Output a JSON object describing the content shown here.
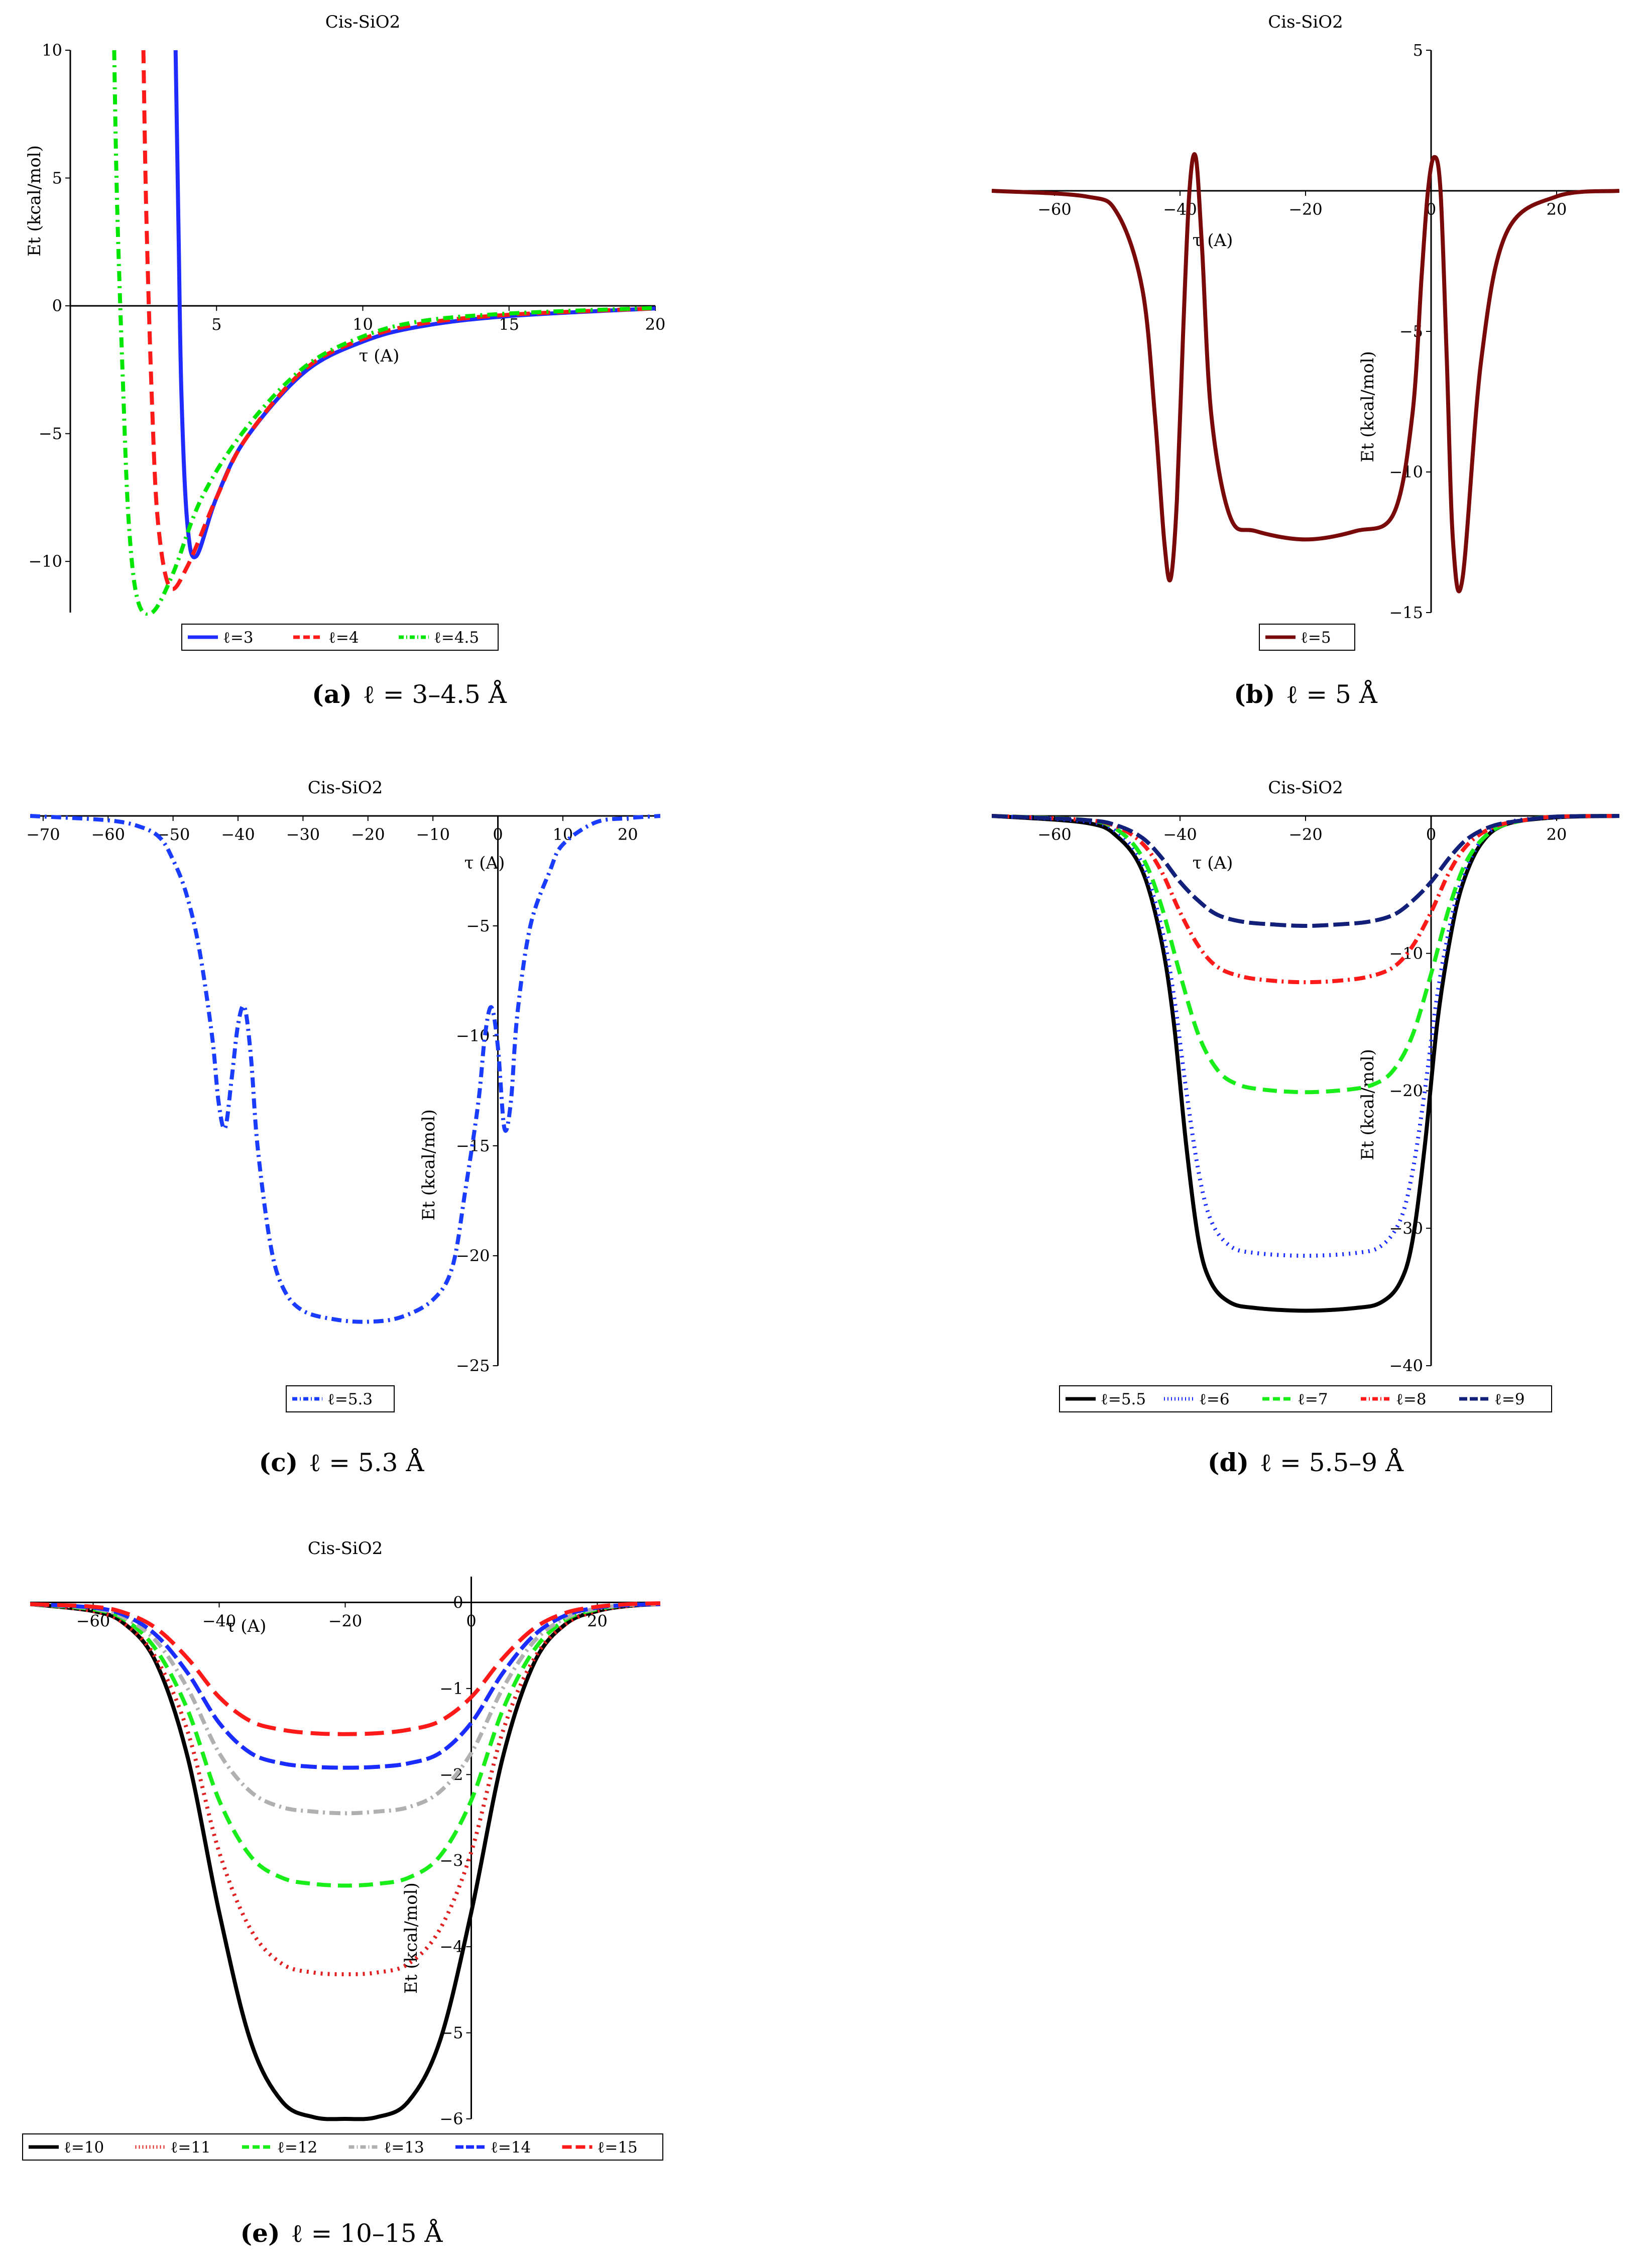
{
  "chart_data": [
    {
      "id": "a",
      "type": "line",
      "title": "Cis-SiO2",
      "xlabel": "τ (A)",
      "ylabel": "Et (kcal/mol)",
      "xlim": [
        0,
        20
      ],
      "ylim": [
        -12,
        10
      ],
      "xticks": [
        5,
        10,
        15,
        20
      ],
      "yticks": [
        -10,
        -5,
        0,
        5,
        10
      ],
      "caption_label": "(a)",
      "caption_text": "ℓ = 3–4.5 Å",
      "series": [
        {
          "name": "ℓ=3",
          "color": "#1f2bff",
          "dash": "",
          "x": [
            3.6,
            3.7,
            3.8,
            4.0,
            4.3,
            5.0,
            6.0,
            8.0,
            10.0,
            12.0,
            15.0,
            20.0
          ],
          "y": [
            10,
            3.0,
            -3.5,
            -8.5,
            -9.8,
            -7.5,
            -5.2,
            -2.6,
            -1.4,
            -0.8,
            -0.4,
            -0.1
          ]
        },
        {
          "name": "ℓ=4",
          "color": "#ff1a1a",
          "dash": "26,14",
          "x": [
            2.5,
            2.6,
            2.8,
            3.0,
            3.4,
            4.0,
            5.0,
            6.0,
            8.0,
            10.0,
            12.0,
            15.0,
            20.0
          ],
          "y": [
            10,
            3.5,
            -4.0,
            -8.5,
            -11.0,
            -10.2,
            -7.5,
            -5.2,
            -2.5,
            -1.3,
            -0.7,
            -0.35,
            -0.1
          ]
        },
        {
          "name": "ℓ=4.5",
          "color": "#00e600",
          "dash": "20,10,4,10",
          "x": [
            1.5,
            1.6,
            1.8,
            2.0,
            2.3,
            2.8,
            3.5,
            4.5,
            6.0,
            8.0,
            10.0,
            12.0,
            15.0,
            20.0
          ],
          "y": [
            10,
            4.0,
            -3.0,
            -8.5,
            -11.5,
            -12.0,
            -10.5,
            -7.5,
            -4.8,
            -2.4,
            -1.2,
            -0.6,
            -0.3,
            -0.08
          ]
        }
      ]
    },
    {
      "id": "b",
      "type": "line",
      "title": "Cis-SiO2",
      "xlabel": "τ (A)",
      "ylabel": "Et (kcal/mol)",
      "xlim": [
        -70,
        30
      ],
      "ylim": [
        -15,
        5
      ],
      "xticks": [
        -60,
        -40,
        -20,
        0,
        20
      ],
      "yticks": [
        -15,
        -10,
        -5,
        5
      ],
      "caption_label": "(b)",
      "caption_text": "ℓ = 5 Å",
      "series": [
        {
          "name": "ℓ=5",
          "color": "#7a0a0a",
          "dash": "",
          "x": [
            -70,
            -55,
            -50,
            -46,
            -44,
            -42.5,
            -41.5,
            -40.5,
            -39.5,
            -38.5,
            -37.5,
            -36.5,
            -35,
            -32,
            -28,
            -20,
            -12,
            -6,
            -3,
            -1.5,
            -0.5,
            0.5,
            1.5,
            2.5,
            3.5,
            5,
            8,
            12,
            20,
            30
          ],
          "y": [
            0,
            -0.2,
            -0.8,
            -3.5,
            -8,
            -12.5,
            -13.8,
            -11,
            -5,
            0,
            1.2,
            -2,
            -8,
            -11.6,
            -12.1,
            -12.4,
            -12.1,
            -11.5,
            -8,
            -3,
            0,
            1.2,
            0,
            -6,
            -12.5,
            -13.8,
            -6,
            -1.5,
            -0.2,
            0
          ]
        }
      ]
    },
    {
      "id": "c",
      "type": "line",
      "title": "Cis-SiO2",
      "xlabel": "τ (A)",
      "ylabel": "Et (kcal/mol)",
      "xlim": [
        -72,
        25
      ],
      "ylim": [
        -25,
        0
      ],
      "xticks": [
        -70,
        -60,
        -50,
        -40,
        -30,
        -20,
        -10,
        0,
        10,
        20
      ],
      "yticks": [
        -25,
        -20,
        -15,
        -10,
        -5
      ],
      "caption_label": "(c)",
      "caption_text": "ℓ = 5.3 Å",
      "series": [
        {
          "name": "ℓ=5.3",
          "color": "#1a3cff",
          "dash": "20,9,4,9",
          "x": [
            -72,
            -60,
            -55,
            -52,
            -50,
            -48,
            -46,
            -44,
            -43,
            -42,
            -41,
            -40,
            -39,
            -38,
            -37,
            -35,
            -33,
            -30,
            -25,
            -20,
            -15,
            -10,
            -7,
            -5,
            -3,
            -2,
            -1,
            0,
            1,
            2,
            3,
            5,
            8,
            10,
            15,
            20,
            25
          ],
          "y": [
            0,
            -0.2,
            -0.5,
            -1.0,
            -2.0,
            -3.5,
            -6.0,
            -10.0,
            -13.0,
            -14.2,
            -12.0,
            -9.5,
            -8.7,
            -11.0,
            -15.0,
            -19.5,
            -21.5,
            -22.5,
            -22.9,
            -23.0,
            -22.8,
            -22.0,
            -20.5,
            -17.0,
            -13.0,
            -10.0,
            -8.7,
            -10.5,
            -14.2,
            -13.0,
            -9.0,
            -5.0,
            -2.5,
            -1.3,
            -0.3,
            -0.1,
            0
          ]
        }
      ]
    },
    {
      "id": "d",
      "type": "line",
      "title": "Cis-SiO2",
      "xlabel": "τ (A)",
      "ylabel": "Et (kcal/mol)",
      "xlim": [
        -70,
        30
      ],
      "ylim": [
        -40,
        0
      ],
      "xticks": [
        -60,
        -40,
        -20,
        0,
        20
      ],
      "yticks": [
        -40,
        -30,
        -20,
        -10
      ],
      "caption_label": "(d)",
      "caption_text": "ℓ = 5.5–9 Å",
      "series": [
        {
          "name": "ℓ=5.5",
          "color": "#000000",
          "dash": "",
          "x": [
            -70,
            -55,
            -50,
            -46,
            -43,
            -41,
            -39,
            -37,
            -35,
            -32,
            -28,
            -20,
            -12,
            -8,
            -5,
            -3,
            -1,
            1,
            3,
            5,
            8,
            12,
            20,
            30
          ],
          "y": [
            0,
            -0.5,
            -1.5,
            -4,
            -9,
            -15,
            -24,
            -31,
            -34,
            -35.4,
            -35.8,
            -36,
            -35.8,
            -35.4,
            -34,
            -31,
            -24,
            -15,
            -9,
            -5,
            -2,
            -0.6,
            -0.1,
            0
          ]
        },
        {
          "name": "ℓ=6",
          "color": "#1a2cff",
          "dash": "3,10",
          "x": [
            -70,
            -55,
            -50,
            -46,
            -43,
            -41,
            -39,
            -37,
            -35,
            -32,
            -28,
            -20,
            -12,
            -8,
            -5,
            -3,
            -1,
            1,
            3,
            5,
            8,
            12,
            20,
            30
          ],
          "y": [
            0,
            -0.4,
            -1.2,
            -3.5,
            -8,
            -13,
            -20,
            -26,
            -29.5,
            -31.3,
            -31.8,
            -32,
            -31.8,
            -31.3,
            -29.5,
            -26,
            -20,
            -13,
            -8,
            -4.5,
            -1.8,
            -0.5,
            -0.1,
            0
          ]
        },
        {
          "name": "ℓ=7",
          "color": "#1aee1a",
          "dash": "28,14",
          "x": [
            -70,
            -55,
            -50,
            -46,
            -43,
            -40,
            -37,
            -34,
            -31,
            -27,
            -20,
            -13,
            -9,
            -6,
            -3,
            0,
            3,
            6,
            10,
            15,
            20,
            30
          ],
          "y": [
            0,
            -0.3,
            -1.0,
            -3.0,
            -6.5,
            -11.5,
            -16,
            -18.5,
            -19.5,
            -19.9,
            -20.1,
            -19.9,
            -19.5,
            -18.5,
            -16,
            -11.5,
            -6.5,
            -3.0,
            -1.0,
            -0.3,
            -0.05,
            0
          ]
        },
        {
          "name": "ℓ=8",
          "color": "#ff1a1a",
          "dash": "22,9,4,9",
          "x": [
            -70,
            -55,
            -50,
            -46,
            -43,
            -40,
            -37,
            -34,
            -30,
            -25,
            -20,
            -15,
            -10,
            -6,
            -3,
            0,
            3,
            6,
            10,
            15,
            20,
            30
          ],
          "y": [
            0,
            -0.3,
            -0.8,
            -2.0,
            -4.0,
            -7.0,
            -9.5,
            -11.0,
            -11.7,
            -12.0,
            -12.1,
            -12.0,
            -11.7,
            -11.0,
            -9.5,
            -7.0,
            -4.0,
            -2.0,
            -0.8,
            -0.3,
            -0.05,
            0
          ]
        },
        {
          "name": "ℓ=9",
          "color": "#12207a",
          "dash": "32,10",
          "x": [
            -70,
            -55,
            -50,
            -46,
            -43,
            -40,
            -37,
            -34,
            -30,
            -25,
            -20,
            -15,
            -10,
            -6,
            -3,
            0,
            3,
            6,
            10,
            15,
            20,
            30
          ],
          "y": [
            0,
            -0.3,
            -0.7,
            -1.6,
            -3.0,
            -4.8,
            -6.2,
            -7.2,
            -7.7,
            -7.9,
            -8.0,
            -7.9,
            -7.7,
            -7.2,
            -6.2,
            -4.8,
            -3.0,
            -1.6,
            -0.7,
            -0.3,
            -0.05,
            0
          ]
        }
      ]
    },
    {
      "id": "e",
      "type": "line",
      "title": "Cis-SiO2",
      "xlabel": "τ (A)",
      "ylabel": "Et (kcal/mol)",
      "xlim": [
        -70,
        30
      ],
      "ylim": [
        -6,
        0.3
      ],
      "xticks": [
        -60,
        -40,
        -20,
        0,
        20
      ],
      "yticks": [
        -6,
        -5,
        -4,
        -3,
        -2,
        -1,
        0
      ],
      "caption_label": "(e)",
      "caption_text": "ℓ = 10–15 Å",
      "series": [
        {
          "name": "ℓ=10",
          "color": "#000000",
          "dash": "",
          "x": [
            -70,
            -60,
            -55,
            -50,
            -45,
            -40,
            -35,
            -30,
            -25,
            -20,
            -15,
            -10,
            -5,
            0,
            5,
            10,
            15,
            20,
            25,
            30
          ],
          "y": [
            -0.02,
            -0.1,
            -0.25,
            -0.7,
            -1.8,
            -3.6,
            -5.1,
            -5.8,
            -5.98,
            -6.0,
            -5.98,
            -5.8,
            -5.1,
            -3.6,
            -1.8,
            -0.7,
            -0.25,
            -0.1,
            -0.04,
            -0.02
          ]
        },
        {
          "name": "ℓ=11",
          "color": "#e02020",
          "dash": "4,10",
          "x": [
            -70,
            -60,
            -55,
            -50,
            -45,
            -40,
            -35,
            -30,
            -25,
            -20,
            -15,
            -10,
            -5,
            0,
            5,
            10,
            15,
            20,
            25,
            30
          ],
          "y": [
            -0.02,
            -0.1,
            -0.25,
            -0.65,
            -1.5,
            -2.9,
            -3.8,
            -4.2,
            -4.3,
            -4.32,
            -4.3,
            -4.2,
            -3.8,
            -2.9,
            -1.5,
            -0.65,
            -0.25,
            -0.1,
            -0.04,
            -0.02
          ]
        },
        {
          "name": "ℓ=12",
          "color": "#1aee1a",
          "dash": "28,14",
          "x": [
            -70,
            -60,
            -55,
            -50,
            -45,
            -40,
            -35,
            -30,
            -25,
            -20,
            -15,
            -10,
            -5,
            0,
            5,
            10,
            15,
            20,
            25,
            30
          ],
          "y": [
            -0.02,
            -0.08,
            -0.2,
            -0.55,
            -1.25,
            -2.3,
            -2.95,
            -3.2,
            -3.27,
            -3.29,
            -3.27,
            -3.2,
            -2.95,
            -2.3,
            -1.25,
            -0.55,
            -0.2,
            -0.08,
            -0.03,
            -0.02
          ]
        },
        {
          "name": "ℓ=13",
          "color": "#b0b0b0",
          "dash": "22,9,4,9",
          "x": [
            -70,
            -60,
            -55,
            -50,
            -45,
            -40,
            -35,
            -30,
            -25,
            -20,
            -15,
            -10,
            -5,
            0,
            5,
            10,
            15,
            20,
            25,
            30
          ],
          "y": [
            -0.02,
            -0.07,
            -0.18,
            -0.45,
            -1.0,
            -1.75,
            -2.2,
            -2.38,
            -2.43,
            -2.45,
            -2.43,
            -2.38,
            -2.2,
            -1.75,
            -1.0,
            -0.45,
            -0.18,
            -0.07,
            -0.03,
            -0.02
          ]
        },
        {
          "name": "ℓ=14",
          "color": "#1a2cff",
          "dash": "32,10",
          "x": [
            -70,
            -60,
            -55,
            -50,
            -45,
            -40,
            -35,
            -30,
            -25,
            -20,
            -15,
            -10,
            -5,
            0,
            5,
            10,
            15,
            20,
            25,
            30
          ],
          "y": [
            -0.02,
            -0.06,
            -0.15,
            -0.38,
            -0.82,
            -1.4,
            -1.75,
            -1.87,
            -1.91,
            -1.92,
            -1.91,
            -1.87,
            -1.75,
            -1.4,
            -0.82,
            -0.38,
            -0.15,
            -0.06,
            -0.03,
            -0.02
          ]
        },
        {
          "name": "ℓ=15",
          "color": "#ff1a1a",
          "dash": "38,16",
          "x": [
            -70,
            -60,
            -55,
            -50,
            -45,
            -40,
            -35,
            -30,
            -25,
            -20,
            -15,
            -10,
            -5,
            0,
            5,
            10,
            15,
            20,
            25,
            30
          ],
          "y": [
            -0.02,
            -0.05,
            -0.12,
            -0.3,
            -0.65,
            -1.1,
            -1.38,
            -1.48,
            -1.52,
            -1.53,
            -1.52,
            -1.48,
            -1.38,
            -1.1,
            -0.65,
            -0.3,
            -0.12,
            -0.05,
            -0.02,
            -0.01
          ]
        }
      ]
    }
  ]
}
